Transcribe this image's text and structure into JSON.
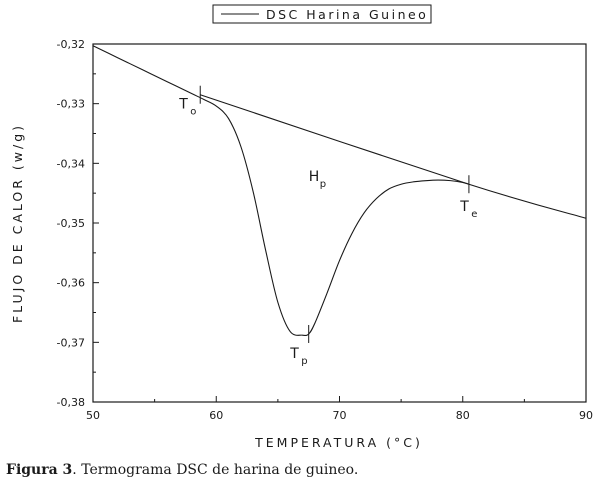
{
  "chart_data": {
    "type": "line",
    "title": "",
    "xlabel": "TEMPERATURA (°C)",
    "ylabel": "FLUJO DE CALOR (w/g)",
    "xlim": [
      50,
      90
    ],
    "ylim": [
      -0.38,
      -0.32
    ],
    "x_ticks": [
      50,
      60,
      70,
      80,
      90
    ],
    "y_ticks": [
      -0.32,
      -0.33,
      -0.34,
      -0.35,
      -0.36,
      -0.37,
      -0.38
    ],
    "x_tick_labels": [
      "50",
      "60",
      "70",
      "80",
      "90"
    ],
    "y_tick_labels": [
      "-0,32",
      "-0,33",
      "-0,34",
      "-0,35",
      "-0,36",
      "-0,37",
      "-0,38"
    ],
    "grid": false,
    "legend": {
      "placement": "top-center",
      "entries": [
        "DSC Harina Guineo"
      ]
    },
    "series": [
      {
        "name": "DSC Harina Guineo",
        "color": "#1a1a1a",
        "x": [
          50,
          52,
          54,
          56,
          58,
          59,
          60,
          61,
          62,
          63,
          64,
          65,
          66,
          67,
          67.5,
          68,
          69,
          70,
          71,
          72,
          73,
          74,
          75,
          76,
          77,
          78,
          79,
          80,
          80.5
        ],
        "y": [
          -0.3203,
          -0.3223,
          -0.3243,
          -0.3263,
          -0.3283,
          -0.3293,
          -0.3304,
          -0.3325,
          -0.3372,
          -0.3448,
          -0.3545,
          -0.3633,
          -0.3682,
          -0.3688,
          -0.3686,
          -0.3668,
          -0.3617,
          -0.3563,
          -0.3518,
          -0.3483,
          -0.3459,
          -0.3443,
          -0.3435,
          -0.3431,
          -0.3429,
          -0.3428,
          -0.3429,
          -0.3432,
          -0.3435
        ]
      },
      {
        "name": "",
        "color": "#1a1a1a",
        "x": [
          58.7,
          80.5,
          90
        ],
        "y": [
          -0.3285,
          -0.3435,
          -0.3492
        ]
      }
    ],
    "markers": [
      {
        "x": 58.7,
        "y": -0.3285
      },
      {
        "x": 67.5,
        "y": -0.3686
      },
      {
        "x": 80.5,
        "y": -0.3435
      }
    ],
    "annotations": [
      {
        "label": "T",
        "sub": "o",
        "x": 57.0,
        "y": -0.3308
      },
      {
        "label": "T",
        "sub": "p",
        "x": 66.0,
        "y": -0.3726
      },
      {
        "label": "T",
        "sub": "e",
        "x": 79.8,
        "y": -0.348
      },
      {
        "label": "H",
        "sub": "p",
        "x": 67.5,
        "y": -0.343
      }
    ]
  },
  "caption": {
    "label": "Figura 3",
    "text": ". Termograma DSC de harina de guineo."
  }
}
